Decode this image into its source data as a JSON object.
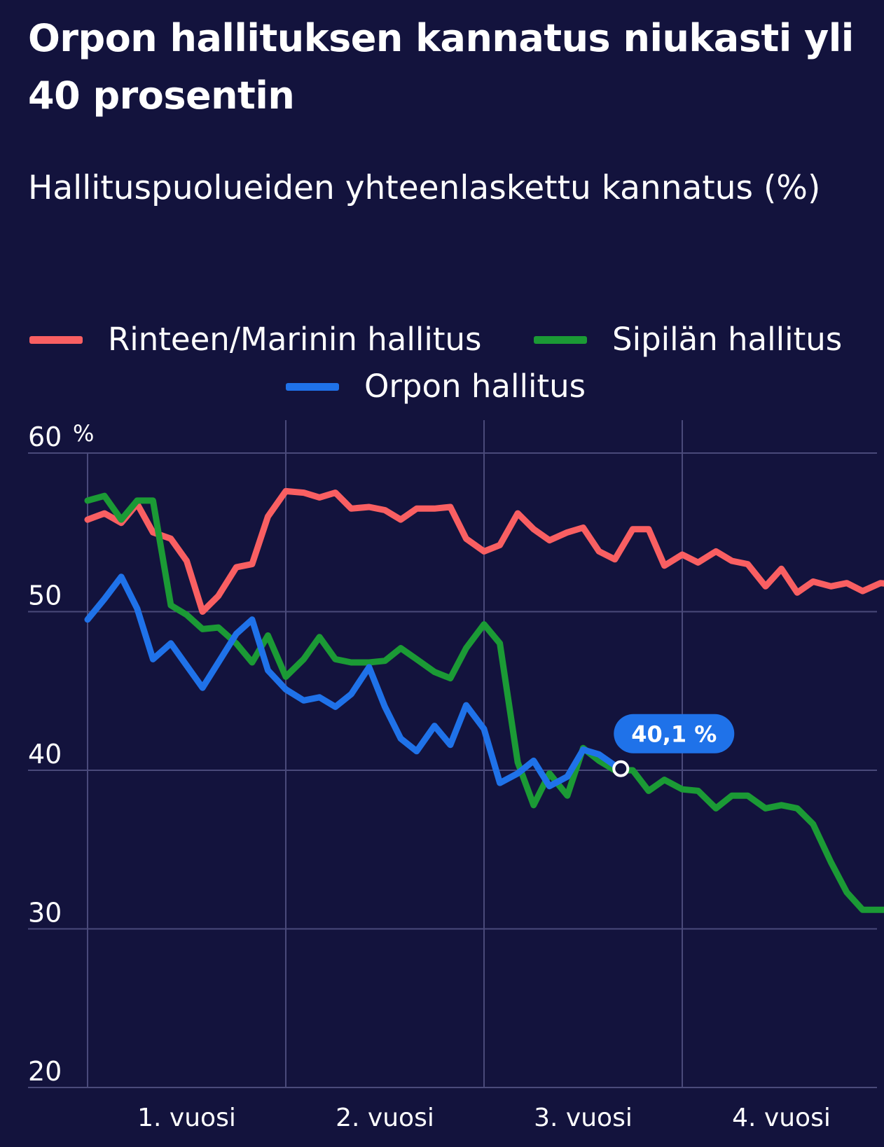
{
  "title": "Orpon hallituksen kannatus niukasti yli 40 prosentin",
  "subtitle": "Hallituspuolueiden yhteenlaskettu kannatus (%)",
  "colors": {
    "background": "#13133d",
    "rinne_marin": "#f95f62",
    "sipila": "#1b9a35",
    "orpo": "#1f72e9",
    "grid": "#4a4a7a"
  },
  "legend": [
    {
      "name": "Rinteen/Marinin hallitus",
      "color": "#f95f62"
    },
    {
      "name": "Sipilän hallitus",
      "color": "#1b9a35"
    },
    {
      "name": "Orpon hallitus",
      "color": "#1f72e9"
    }
  ],
  "chart_data": {
    "type": "line",
    "y_unit": "%",
    "ylim": [
      20,
      60
    ],
    "y_ticks": [
      60,
      50,
      40,
      30,
      20
    ],
    "x_range": [
      0,
      4.3
    ],
    "x_tick_labels": [
      {
        "label": "1. vuosi",
        "x": 0.5
      },
      {
        "label": "2. vuosi",
        "x": 1.5
      },
      {
        "label": "3. vuosi",
        "x": 2.5
      },
      {
        "label": "4. vuosi",
        "x": 3.5
      }
    ],
    "year_lines": [
      1,
      2,
      3
    ],
    "grid": true,
    "legend_position": "top",
    "annotation": {
      "label": "40,1 %",
      "series": "Orpon hallitus",
      "x": 2.69,
      "y": 40.1
    },
    "series": [
      {
        "name": "Rinteen/Marinin hallitus",
        "color": "#f95f62",
        "x": [
          0,
          0.085,
          0.17,
          0.25,
          0.33,
          0.42,
          0.5,
          0.58,
          0.66,
          0.75,
          0.83,
          0.91,
          1.0,
          1.09,
          1.17,
          1.25,
          1.33,
          1.42,
          1.5,
          1.58,
          1.66,
          1.75,
          1.83,
          1.91,
          2.0,
          2.08,
          2.17,
          2.25,
          2.33,
          2.42,
          2.5,
          2.58,
          2.66,
          2.75,
          2.83,
          2.91,
          3.0,
          3.08,
          3.17,
          3.25,
          3.33,
          3.42,
          3.5,
          3.58,
          3.66,
          3.75,
          3.83,
          3.91,
          4.0,
          4.08,
          4.16,
          4.23
        ],
        "values": [
          55.8,
          56.2,
          55.6,
          56.8,
          55.0,
          54.6,
          53.2,
          50.0,
          51.0,
          52.8,
          53.0,
          56.0,
          57.6,
          57.5,
          57.2,
          57.5,
          56.5,
          56.6,
          56.4,
          55.8,
          56.5,
          56.5,
          56.6,
          54.6,
          53.8,
          54.2,
          56.2,
          55.2,
          54.5,
          55.0,
          55.3,
          53.8,
          53.3,
          55.2,
          55.2,
          52.9,
          53.6,
          53.1,
          53.8,
          53.2,
          53.0,
          51.6,
          52.7,
          51.2,
          51.9,
          51.6,
          51.8,
          51.3,
          51.8,
          51.7,
          51.8,
          51.3
        ]
      },
      {
        "name": "Sipilän hallitus",
        "color": "#1b9a35",
        "x": [
          0,
          0.085,
          0.17,
          0.25,
          0.33,
          0.42,
          0.5,
          0.58,
          0.66,
          0.75,
          0.83,
          0.91,
          1.0,
          1.09,
          1.17,
          1.25,
          1.33,
          1.42,
          1.5,
          1.58,
          1.66,
          1.75,
          1.83,
          1.91,
          2.0,
          2.08,
          2.17,
          2.25,
          2.33,
          2.42,
          2.5,
          2.58,
          2.66,
          2.75,
          2.83,
          2.91,
          3.0,
          3.08,
          3.17,
          3.25,
          3.33,
          3.42,
          3.5,
          3.58,
          3.66,
          3.75,
          3.83,
          3.91,
          4.0,
          4.08,
          4.16,
          4.23
        ],
        "values": [
          57.0,
          57.3,
          55.8,
          57.0,
          57.0,
          50.4,
          49.8,
          48.9,
          49.0,
          48.0,
          46.8,
          48.5,
          45.9,
          47.0,
          48.4,
          47.0,
          46.8,
          46.8,
          46.9,
          47.7,
          47.0,
          46.2,
          45.8,
          47.7,
          49.2,
          48.0,
          40.5,
          37.8,
          39.8,
          38.4,
          41.4,
          40.6,
          40.0,
          40.0,
          38.7,
          39.4,
          38.8,
          38.7,
          37.6,
          38.4,
          38.4,
          37.6,
          37.8,
          37.6,
          36.6,
          34.2,
          32.3,
          31.2,
          31.2,
          31.2,
          31.2,
          31.2
        ]
      },
      {
        "name": "Orpon hallitus",
        "color": "#1f72e9",
        "x": [
          0,
          0.085,
          0.17,
          0.25,
          0.33,
          0.42,
          0.5,
          0.58,
          0.66,
          0.75,
          0.83,
          0.91,
          1.0,
          1.09,
          1.17,
          1.25,
          1.33,
          1.42,
          1.5,
          1.58,
          1.66,
          1.75,
          1.83,
          1.91,
          2.0,
          2.08,
          2.17,
          2.25,
          2.33,
          2.42,
          2.5,
          2.58,
          2.66,
          2.69
        ],
        "values": [
          49.5,
          50.8,
          52.2,
          50.2,
          47.0,
          48.0,
          46.6,
          45.2,
          46.8,
          48.6,
          49.5,
          46.3,
          45.1,
          44.4,
          44.6,
          44.0,
          44.8,
          46.5,
          44.0,
          42.0,
          41.2,
          42.8,
          41.6,
          44.1,
          42.6,
          39.2,
          39.8,
          40.6,
          39.0,
          39.6,
          41.3,
          41.0,
          40.3,
          40.1
        ]
      }
    ]
  }
}
